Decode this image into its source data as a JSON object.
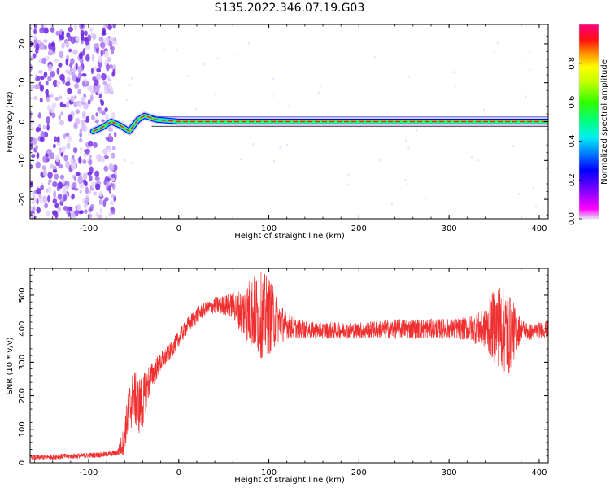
{
  "title": "S135.2022.346.07.19.G03",
  "colors": {
    "snr_line": "#f03030",
    "speckle": "#7a30e8",
    "axis": "#000000"
  },
  "chart_data": [
    {
      "type": "heatmap",
      "xlabel": "Height of straight line (km)",
      "ylabel": "Frequency (Hz)",
      "xlim": [
        -165,
        410
      ],
      "ylim": [
        -25,
        25
      ],
      "x_ticks": [
        -100,
        0,
        100,
        200,
        300,
        400
      ],
      "x_tick_labels": [
        "-100",
        "0",
        "100",
        "200",
        "300",
        "400"
      ],
      "y_ticks": [
        -20,
        -10,
        0,
        10,
        20
      ],
      "y_tick_labels": [
        "-20",
        "-10",
        "0",
        "10",
        "20"
      ],
      "colorbar": {
        "label": "Normalized spectral amplitude",
        "range": [
          0,
          1
        ],
        "ticks": [
          0.0,
          0.2,
          0.4,
          0.6,
          0.8
        ],
        "tick_labels": [
          "0.0",
          "0.2",
          "0.4",
          "0.6",
          "0.8"
        ],
        "colormap": "gist_ncar-like (magenta-blue-cyan-green-yellow-red-pink)"
      },
      "noise_region_x": [
        -165,
        -70
      ],
      "ridge": [
        {
          "x": -95,
          "f": -2.5
        },
        {
          "x": -85,
          "f": -1.5
        },
        {
          "x": -75,
          "f": 0.0
        },
        {
          "x": -65,
          "f": -1.0
        },
        {
          "x": -55,
          "f": -2.5
        },
        {
          "x": -45,
          "f": 0.5
        },
        {
          "x": -38,
          "f": 1.5
        },
        {
          "x": -25,
          "f": 0.5
        },
        {
          "x": 0,
          "f": 0.0
        },
        {
          "x": 410,
          "f": 0.0
        }
      ]
    },
    {
      "type": "line",
      "xlabel": "Height of straight line (km)",
      "ylabel": "SNR (10 * v/v)",
      "xlim": [
        -165,
        410
      ],
      "ylim": [
        0,
        580
      ],
      "x_ticks": [
        -100,
        0,
        100,
        200,
        300,
        400
      ],
      "x_tick_labels": [
        "-100",
        "0",
        "100",
        "200",
        "300",
        "400"
      ],
      "y_ticks": [
        0,
        100,
        200,
        300,
        400,
        500
      ],
      "y_tick_labels": [
        "0",
        "100",
        "200",
        "300",
        "400",
        "500"
      ],
      "series": [
        {
          "x": [
            -165,
            -140,
            -120,
            -100,
            -80,
            -68,
            -62,
            -58,
            -55,
            -50,
            -45,
            -40,
            -35,
            -30,
            -20,
            -10,
            0,
            10,
            20,
            30,
            40,
            50,
            60,
            70,
            80,
            90,
            100,
            110,
            120,
            130,
            150,
            200,
            250,
            300,
            320,
            340,
            350,
            360,
            365,
            370,
            380,
            390,
            410
          ],
          "center": [
            15,
            18,
            20,
            22,
            25,
            30,
            60,
            120,
            160,
            200,
            170,
            180,
            230,
            260,
            300,
            330,
            370,
            410,
            440,
            460,
            470,
            470,
            470,
            450,
            450,
            440,
            440,
            420,
            410,
            400,
            395,
            395,
            400,
            400,
            400,
            400,
            410,
            410,
            380,
            390,
            400,
            390,
            400
          ],
          "amplitude": [
            8,
            8,
            8,
            8,
            8,
            10,
            40,
            60,
            80,
            80,
            90,
            80,
            60,
            40,
            30,
            25,
            25,
            25,
            25,
            20,
            25,
            30,
            40,
            70,
            110,
            130,
            120,
            70,
            40,
            30,
            25,
            25,
            30,
            30,
            35,
            60,
            110,
            140,
            130,
            100,
            30,
            25,
            25
          ]
        }
      ]
    }
  ]
}
